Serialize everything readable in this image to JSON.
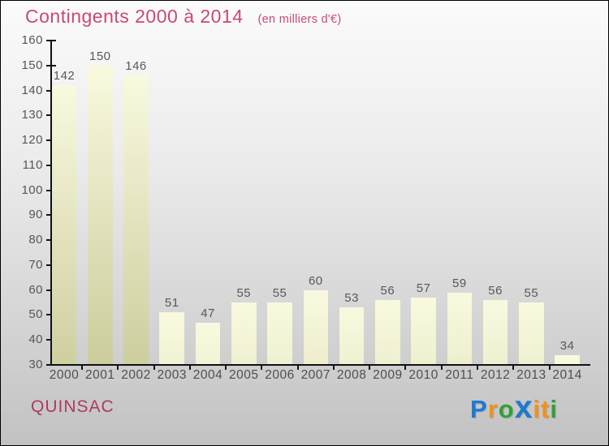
{
  "header": {
    "title": "Contingents 2000 à 2014",
    "subtitle": "(en milliers d'€)",
    "title_color": "#c84a70"
  },
  "chart_data": {
    "type": "bar",
    "title": "Contingents 2000 à 2014",
    "subtitle": "(en milliers d'€)",
    "categories": [
      "2000",
      "2001",
      "2002",
      "2003",
      "2004",
      "2005",
      "2006",
      "2007",
      "2008",
      "2009",
      "2010",
      "2011",
      "2012",
      "2013",
      "2014"
    ],
    "values": [
      142,
      150,
      146,
      51,
      47,
      55,
      55,
      60,
      53,
      56,
      57,
      59,
      56,
      55,
      34
    ],
    "xlabel": "",
    "ylabel": "",
    "ylim": [
      30,
      160
    ],
    "yticks": [
      30,
      40,
      50,
      60,
      70,
      80,
      90,
      100,
      110,
      120,
      130,
      140,
      150,
      160
    ],
    "grid": false,
    "legend": false,
    "value_labels_shown": true,
    "bar_color_top": "#f9f9df",
    "bar_color_bottom": "#c8c996",
    "axis_color": "#111111",
    "tick_label_color": "#565656"
  },
  "footer": {
    "site_label": "QUINSAC",
    "site_color": "#ac3a63",
    "logo_text": "Proxiti",
    "logo_letters": [
      {
        "char": "P",
        "color": "#1e78d2",
        "big": false
      },
      {
        "char": "r",
        "color": "#f2901c",
        "big": false
      },
      {
        "char": "o",
        "color": "#2fa13a",
        "big": false
      },
      {
        "char": "x",
        "color": "#1e78d2",
        "big": true
      },
      {
        "char": "i",
        "color": "#f2901c",
        "big": false
      },
      {
        "char": "t",
        "color": "#f2901c",
        "big": false
      },
      {
        "char": "i",
        "color": "#2fa13a",
        "big": false
      }
    ]
  },
  "background": {
    "top": "#fbfbfb",
    "bottom": "#c2c2c2",
    "border": "#000000"
  }
}
